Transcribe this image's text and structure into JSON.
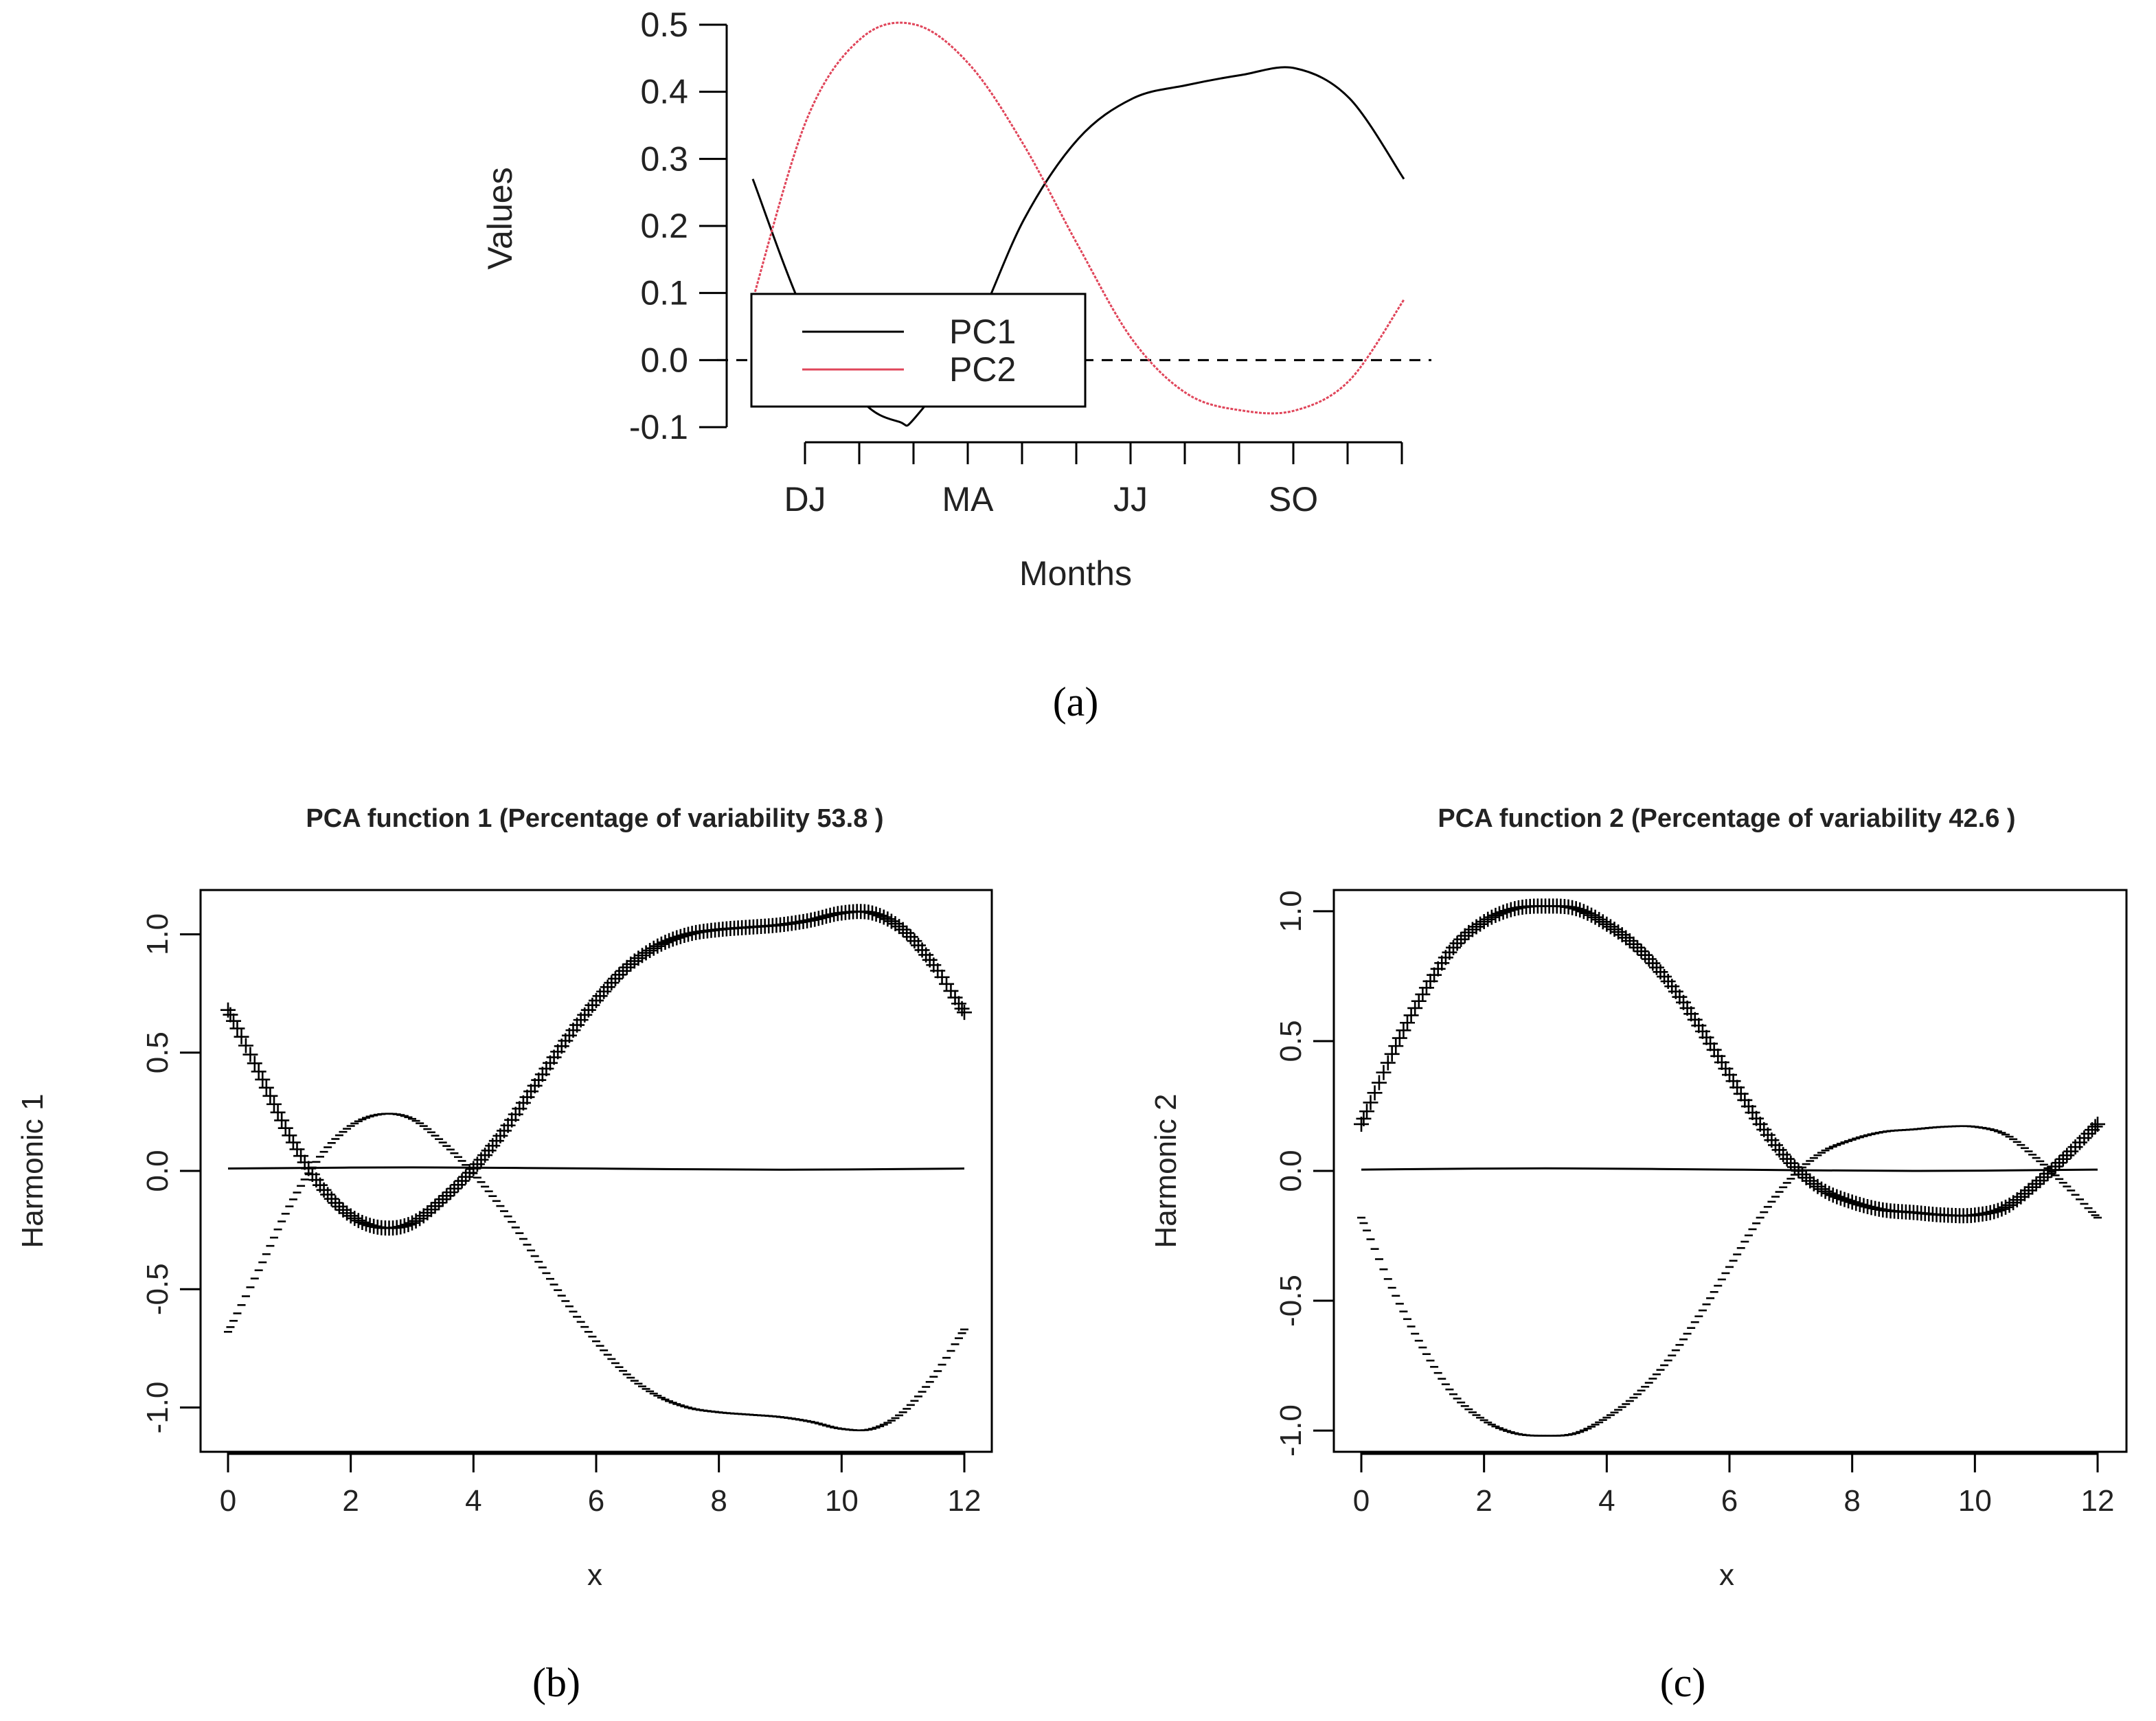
{
  "panels": [
    {
      "label": "a",
      "label_display": "(a)"
    },
    {
      "label": "b",
      "label_display": "(b)"
    },
    {
      "label": "c",
      "label_display": "(c)"
    }
  ],
  "chart_data": [
    {
      "panel": "a",
      "type": "line",
      "title": "",
      "xlabel": "Months",
      "ylabel": "Values",
      "x_ticks": [
        1,
        2,
        3,
        4,
        5,
        6,
        7,
        8,
        9,
        10,
        11,
        12
      ],
      "x_tick_labels": [
        {
          "x": 1,
          "label": "DJ"
        },
        {
          "x": 4,
          "label": "MA"
        },
        {
          "x": 7,
          "label": "JJ"
        },
        {
          "x": 10,
          "label": "SO"
        }
      ],
      "xlim": [
        0,
        12
      ],
      "ylim": [
        -0.1,
        0.5
      ],
      "y_ticks": [
        "-0.1",
        "0.0",
        "0.1",
        "0.2",
        "0.3",
        "0.4",
        "0.5"
      ],
      "reference_line": {
        "y": 0,
        "style": "dashed"
      },
      "legend": {
        "position": "left-center",
        "entries": [
          "PC1",
          "PC2"
        ]
      },
      "series": [
        {
          "name": "PC1",
          "color": "#000000",
          "x": [
            0,
            1,
            2,
            2.7,
            3,
            4,
            5,
            6,
            7,
            8,
            9,
            10,
            11,
            12
          ],
          "y": [
            0.27,
            0.06,
            -0.06,
            -0.092,
            -0.085,
            0.03,
            0.21,
            0.33,
            0.39,
            0.41,
            0.425,
            0.435,
            0.39,
            0.27
          ]
        },
        {
          "name": "PC2",
          "color": "#e0455a",
          "x": [
            0,
            1,
            2,
            3,
            4,
            5,
            6,
            7,
            8,
            9,
            10,
            11,
            12
          ],
          "y": [
            0.09,
            0.36,
            0.48,
            0.5,
            0.44,
            0.32,
            0.17,
            0.03,
            -0.05,
            -0.075,
            -0.075,
            -0.03,
            0.09
          ]
        }
      ]
    },
    {
      "panel": "b",
      "type": "line",
      "title": "PCA function 1 (Percentage of variability 53.8 )",
      "xlabel": "x",
      "ylabel": "Harmonic 1",
      "xlim": [
        0,
        12
      ],
      "ylim": [
        -1.1,
        1.1
      ],
      "x_ticks": [
        "0",
        "2",
        "4",
        "6",
        "8",
        "10",
        "12"
      ],
      "y_ticks": [
        "-1.0",
        "-0.5",
        "0.0",
        "0.5",
        "1.0"
      ],
      "series": [
        {
          "name": "",
          "marker": "+",
          "x": [
            0,
            0.5,
            1,
            1.5,
            2,
            2.5,
            3,
            3.5,
            4,
            4.5,
            5,
            5.5,
            6,
            6.5,
            7,
            7.5,
            8,
            8.5,
            9,
            9.5,
            10,
            10.5,
            11,
            11.5,
            12
          ],
          "y": [
            0.68,
            0.42,
            0.15,
            -0.06,
            -0.19,
            -0.24,
            -0.22,
            -0.12,
            0.01,
            0.17,
            0.36,
            0.55,
            0.72,
            0.86,
            0.95,
            1.0,
            1.02,
            1.03,
            1.04,
            1.06,
            1.09,
            1.09,
            1.02,
            0.87,
            0.67
          ]
        },
        {
          "name": "",
          "marker": "-",
          "x": [
            0,
            0.5,
            1,
            1.5,
            2,
            2.5,
            3,
            3.5,
            4,
            4.5,
            5,
            5.5,
            6,
            6.5,
            7,
            7.5,
            8,
            8.5,
            9,
            9.5,
            10,
            10.5,
            11,
            11.5,
            12
          ],
          "y": [
            -0.68,
            -0.42,
            -0.15,
            0.06,
            0.19,
            0.24,
            0.22,
            0.12,
            -0.01,
            -0.17,
            -0.36,
            -0.55,
            -0.72,
            -0.86,
            -0.95,
            -1.0,
            -1.02,
            -1.03,
            -1.04,
            -1.06,
            -1.09,
            -1.09,
            -1.02,
            -0.87,
            -0.67
          ]
        },
        {
          "name": "",
          "marker": "line",
          "x": [
            0,
            3,
            6,
            9,
            12
          ],
          "y": [
            0.01,
            0.015,
            0.01,
            0.005,
            0.01
          ]
        }
      ]
    },
    {
      "panel": "c",
      "type": "line",
      "title": "PCA function 2 (Percentage of variability 42.6 )",
      "xlabel": "x",
      "ylabel": "Harmonic 2",
      "xlim": [
        0,
        12
      ],
      "ylim": [
        -1.05,
        1.05
      ],
      "x_ticks": [
        "0",
        "2",
        "4",
        "6",
        "8",
        "10",
        "12"
      ],
      "y_ticks": [
        "-1.0",
        "-0.5",
        "0.0",
        "0.5",
        "1.0"
      ],
      "series": [
        {
          "name": "",
          "marker": "+",
          "x": [
            0,
            0.5,
            1,
            1.5,
            2,
            2.5,
            3,
            3.5,
            4,
            4.5,
            5,
            5.5,
            6,
            6.5,
            7,
            7.5,
            8,
            8.5,
            9,
            9.5,
            10,
            10.5,
            11,
            11.5,
            12
          ],
          "y": [
            0.18,
            0.45,
            0.68,
            0.86,
            0.96,
            1.01,
            1.02,
            1.01,
            0.95,
            0.86,
            0.73,
            0.56,
            0.37,
            0.18,
            0.03,
            -0.07,
            -0.12,
            -0.15,
            -0.16,
            -0.17,
            -0.17,
            -0.14,
            -0.05,
            0.06,
            0.18
          ]
        },
        {
          "name": "",
          "marker": "-",
          "x": [
            0,
            0.5,
            1,
            1.5,
            2,
            2.5,
            3,
            3.5,
            4,
            4.5,
            5,
            5.5,
            6,
            6.5,
            7,
            7.5,
            8,
            8.5,
            9,
            9.5,
            10,
            10.5,
            11,
            11.5,
            12
          ],
          "y": [
            -0.18,
            -0.45,
            -0.68,
            -0.86,
            -0.96,
            -1.01,
            -1.02,
            -1.01,
            -0.95,
            -0.86,
            -0.73,
            -0.56,
            -0.37,
            -0.18,
            -0.03,
            0.07,
            0.12,
            0.15,
            0.16,
            0.17,
            0.17,
            0.14,
            0.05,
            -0.06,
            -0.18
          ]
        },
        {
          "name": "",
          "marker": "line",
          "x": [
            0,
            3,
            6,
            9,
            12
          ],
          "y": [
            0.005,
            0.01,
            0.005,
            0.0,
            0.005
          ]
        }
      ]
    }
  ]
}
